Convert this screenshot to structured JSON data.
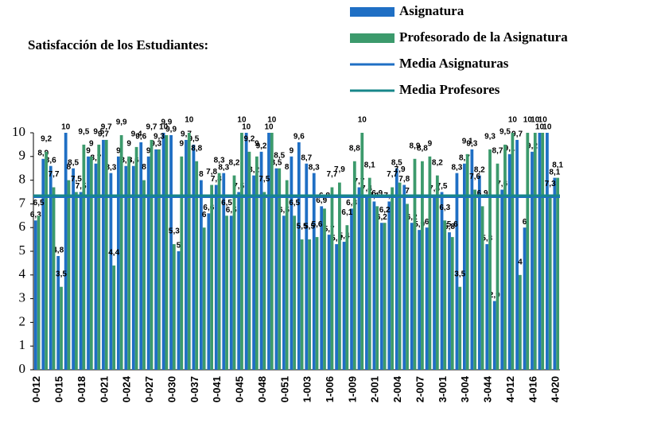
{
  "chart_data": {
    "type": "bar",
    "title": "Satisfacción de los Estudiantes:",
    "categories": [
      "0-012",
      null,
      null,
      "0-015",
      null,
      null,
      "0-018",
      null,
      null,
      "0-021",
      null,
      null,
      "0-024",
      null,
      null,
      "0-027",
      null,
      null,
      "0-030",
      null,
      null,
      "0-037",
      null,
      null,
      "0-041",
      null,
      null,
      "0-045",
      null,
      null,
      "0-048",
      null,
      null,
      "0-051",
      null,
      null,
      "1-003",
      null,
      null,
      "1-006",
      null,
      null,
      "1-009",
      null,
      null,
      "2-001",
      null,
      null,
      "2-004",
      null,
      null,
      "2-007",
      null,
      null,
      "3-001",
      null,
      null,
      "3-004",
      null,
      null,
      "3-044",
      null,
      null,
      "4-012",
      null,
      null,
      "4-016",
      null,
      null,
      "4-020"
    ],
    "series": [
      {
        "name": "Asignatura",
        "color": "#1f6fc4",
        "values": [
          6.3,
          8.9,
          8.6,
          4.8,
          10,
          8.5,
          7.5,
          9,
          8.7,
          9.7,
          8.3,
          9,
          8.6,
          8.6,
          9.6,
          9,
          9.3,
          10,
          9.9,
          5,
          9.7,
          9.5,
          8,
          6.6,
          7.8,
          8.3,
          6.5,
          7.5,
          10,
          8.2,
          9.2,
          10,
          8.5,
          6.5,
          9,
          9.6,
          8.7,
          8.3,
          6.9,
          5.7,
          5.3,
          5.4,
          6.8,
          7.7,
          7.4,
          7.1,
          6.2,
          7.1,
          8.5,
          7.8,
          6.2,
          5.9,
          6,
          7.4,
          7.5,
          5.8,
          8.3,
          8.7,
          9.3,
          8.2,
          5.3,
          2.9,
          7.6,
          9.1,
          9.7,
          6,
          9.2,
          10,
          10,
          8.1
        ],
        "value_labels": [
          "6,3",
          "8,9",
          "8,6",
          "4,8",
          "10",
          "8,5",
          "7,5",
          "9",
          "8,7",
          "9,7",
          "8,3",
          "9",
          "8,6",
          "8,6",
          "9,6",
          "9",
          "9,3",
          "10",
          "9,9",
          "5",
          "9,7",
          "9,5",
          "8",
          "6,6",
          "7,8",
          "8,3",
          "6,5",
          "7,5",
          "10",
          "8,2",
          "9,2",
          "10",
          "8,5",
          "6,5",
          "9",
          "9,6",
          "8,7",
          "8,3",
          "6,9",
          "5,7",
          "5,3",
          "5,4",
          "6,8",
          "7,7",
          "7,4",
          "7,1",
          "6,2",
          "7,1",
          "8,5",
          "7,8",
          "6,2",
          "5,9",
          "6",
          "7,4",
          "7,5",
          "5,8",
          "8,3",
          "8,7",
          "9,3",
          "8,2",
          "5,3",
          "2,9",
          "7,6",
          "9,1",
          "9,7",
          "6",
          "9,2",
          "10",
          "10",
          "8,1"
        ]
      },
      {
        "name": "Profesorado de la Asignatura",
        "color": "#3c9a6c",
        "values": [
          6.5,
          9.2,
          7.7,
          3.5,
          8,
          7.5,
          9.5,
          9,
          9.5,
          9.7,
          4.4,
          9.9,
          9,
          9.4,
          8,
          9.7,
          9.3,
          9.9,
          5.3,
          9,
          10,
          8.8,
          6,
          7.8,
          8.3,
          6.5,
          8.2,
          10,
          9.2,
          9,
          7.5,
          10,
          8.5,
          8,
          6.5,
          5.5,
          5.5,
          5.6,
          6.8,
          7.7,
          7.9,
          6.1,
          8.8,
          10,
          8.1,
          6.9,
          6.2,
          7.7,
          7.9,
          7,
          8.9,
          8.8,
          9,
          8.2,
          6.3,
          5.6,
          3.5,
          9.1,
          7.6,
          6.9,
          9.3,
          8.7,
          9.5,
          10,
          4,
          10,
          10,
          10,
          7.3,
          8.1
        ],
        "value_labels": [
          "6,5",
          "9,2",
          "7,7",
          "3,5",
          "8",
          "7,5",
          "9,5",
          "9",
          "9,5",
          "9,7",
          "4,4",
          "9,9",
          "9",
          "9,4",
          "8",
          "9,7",
          "9,3",
          "9,9",
          "5,3",
          "9",
          "10",
          "8,8",
          "6",
          "7,8",
          "8,3",
          "6,5",
          "8,2",
          "10",
          "9,2",
          "9",
          "7,5",
          "10",
          "8,5",
          "8",
          "6,5",
          "5,5",
          "5,5",
          "5,6",
          "6,8",
          "7,7",
          "7,9",
          "6,1",
          "8,8",
          "10",
          "8,1",
          "6,9",
          "6,2",
          "7,7",
          "7,9",
          "7",
          "8,9",
          "8,8",
          "9",
          "8,2",
          "6,3",
          "5,6",
          "3,5",
          "9,1",
          "7,6",
          "6,9",
          "9,3",
          "8,7",
          "9,5",
          "10",
          "4",
          "10",
          "10",
          "10",
          "7,3",
          "8,1"
        ]
      }
    ],
    "reference_lines": [
      {
        "name": "Media Asignaturas",
        "color": "#1f6fc4",
        "value": 7.3
      },
      {
        "name": "Media Profesores",
        "color": "#17878a",
        "value": 7.35
      }
    ],
    "ylim": [
      0,
      10
    ],
    "yticks": [
      0,
      1,
      2,
      3,
      4,
      5,
      6,
      7,
      8,
      9,
      10
    ]
  }
}
